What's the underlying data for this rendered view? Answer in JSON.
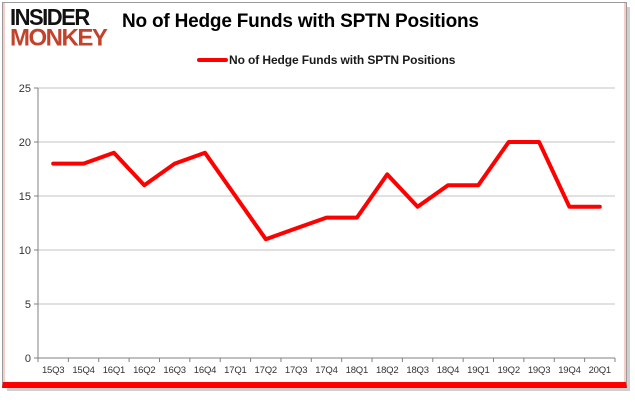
{
  "branding": {
    "insider": "INSIDER",
    "monkey": "MONKEY"
  },
  "header": {
    "title": "No of Hedge Funds with SPTN Positions"
  },
  "legend": {
    "label": "No of Hedge Funds with SPTN Positions"
  },
  "chart_data": {
    "type": "line",
    "title": "No of Hedge Funds with SPTN Positions",
    "categories": [
      "15Q3",
      "15Q4",
      "16Q1",
      "16Q2",
      "16Q3",
      "16Q4",
      "17Q1",
      "17Q2",
      "17Q3",
      "17Q4",
      "18Q1",
      "18Q2",
      "18Q3",
      "18Q4",
      "19Q1",
      "19Q2",
      "19Q3",
      "19Q4",
      "20Q1"
    ],
    "series": [
      {
        "name": "No of Hedge Funds with SPTN Positions",
        "values": [
          18,
          18,
          19,
          16,
          18,
          19,
          15,
          11,
          12,
          13,
          13,
          17,
          14,
          16,
          16,
          20,
          20,
          14,
          14
        ],
        "color": "#ff0000"
      }
    ],
    "xlabel": "",
    "ylabel": "",
    "ylim": [
      0,
      25
    ],
    "ytick_step": 5,
    "grid": true,
    "legend_position": "top"
  },
  "colors": {
    "line": "#ff0000",
    "accent_bar": "#ff0000",
    "logo_monkey": "#c2422b",
    "logo_insider": "#111111",
    "grid": "#c3c3c3",
    "axis": "#808080",
    "tick_label": "#333333",
    "shadow": "#cfcfcf"
  }
}
